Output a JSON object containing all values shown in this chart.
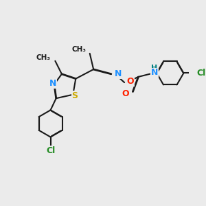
{
  "background_color": "#ebebeb",
  "bond_color": "#1a1a1a",
  "atom_colors": {
    "N": "#1e90ff",
    "S": "#ccaa00",
    "O": "#ff2200",
    "Cl": "#228b22",
    "H": "#008080",
    "C": "#1a1a1a"
  }
}
